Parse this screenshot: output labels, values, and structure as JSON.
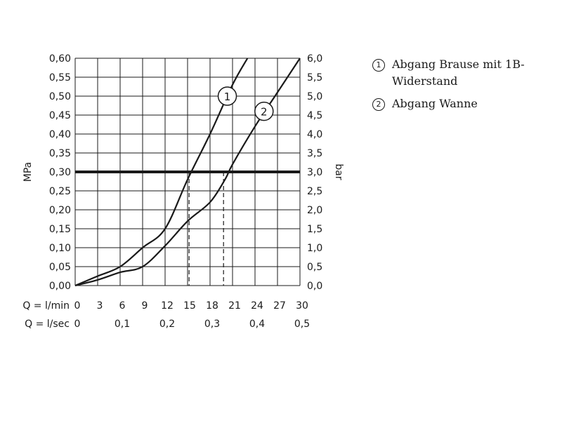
{
  "chart_data": {
    "type": "line",
    "left_axis": {
      "label": "MPa",
      "ticks": [
        "0,00",
        "0,05",
        "0,10",
        "0,15",
        "0,20",
        "0,25",
        "0,30",
        "0,35",
        "0,40",
        "0,45",
        "0,50",
        "0,55",
        "0,60"
      ],
      "ylim": [
        0,
        0.6
      ]
    },
    "right_axis": {
      "label": "bar",
      "ticks": [
        "0,0",
        "0,5",
        "1,0",
        "1,5",
        "2,0",
        "2,5",
        "3,0",
        "3,5",
        "4,0",
        "4,5",
        "5,0",
        "5,5",
        "6,0"
      ],
      "ylim": [
        0,
        6
      ]
    },
    "x_axis_lmin": {
      "label": "Q = l/min",
      "ticks": [
        "0",
        "3",
        "6",
        "9",
        "12",
        "15",
        "18",
        "21",
        "24",
        "27",
        "30"
      ],
      "xlim": [
        0,
        30
      ]
    },
    "x_axis_lsec": {
      "label": "Q = l/sec",
      "ticks": [
        "0",
        "0,1",
        "0,2",
        "0,3",
        "0,4",
        "0,5"
      ],
      "values": [
        0,
        0.1,
        0.2,
        0.3,
        0.4,
        0.5
      ]
    },
    "series": [
      {
        "name": "Abgang Brause mit 1B-Widerstand",
        "marker": "1",
        "points": [
          [
            0,
            0
          ],
          [
            3,
            0.025
          ],
          [
            6,
            0.05
          ],
          [
            9,
            0.1
          ],
          [
            12,
            0.15
          ],
          [
            15,
            0.28
          ],
          [
            18,
            0.4
          ],
          [
            21,
            0.53
          ],
          [
            23,
            0.6
          ]
        ]
      },
      {
        "name": "Abgang Wanne",
        "marker": "2",
        "points": [
          [
            0,
            0
          ],
          [
            3,
            0.015
          ],
          [
            6,
            0.035
          ],
          [
            9,
            0.05
          ],
          [
            12,
            0.105
          ],
          [
            15,
            0.17
          ],
          [
            18,
            0.22
          ],
          [
            20,
            0.28
          ],
          [
            21,
            0.32
          ],
          [
            24,
            0.42
          ],
          [
            27,
            0.51
          ],
          [
            30,
            0.6
          ]
        ]
      }
    ],
    "reference_line": {
      "y": 0.3
    },
    "intersections": [
      {
        "x": 15.2,
        "y": 0.3
      },
      {
        "x": 19.8,
        "y": 0.3
      }
    ],
    "grid": true
  },
  "legend": {
    "items": [
      {
        "marker": "1",
        "label": "Abgang Brause mit 1B-\nWiderstand"
      },
      {
        "marker": "2",
        "label": "Abgang Wanne"
      }
    ]
  }
}
